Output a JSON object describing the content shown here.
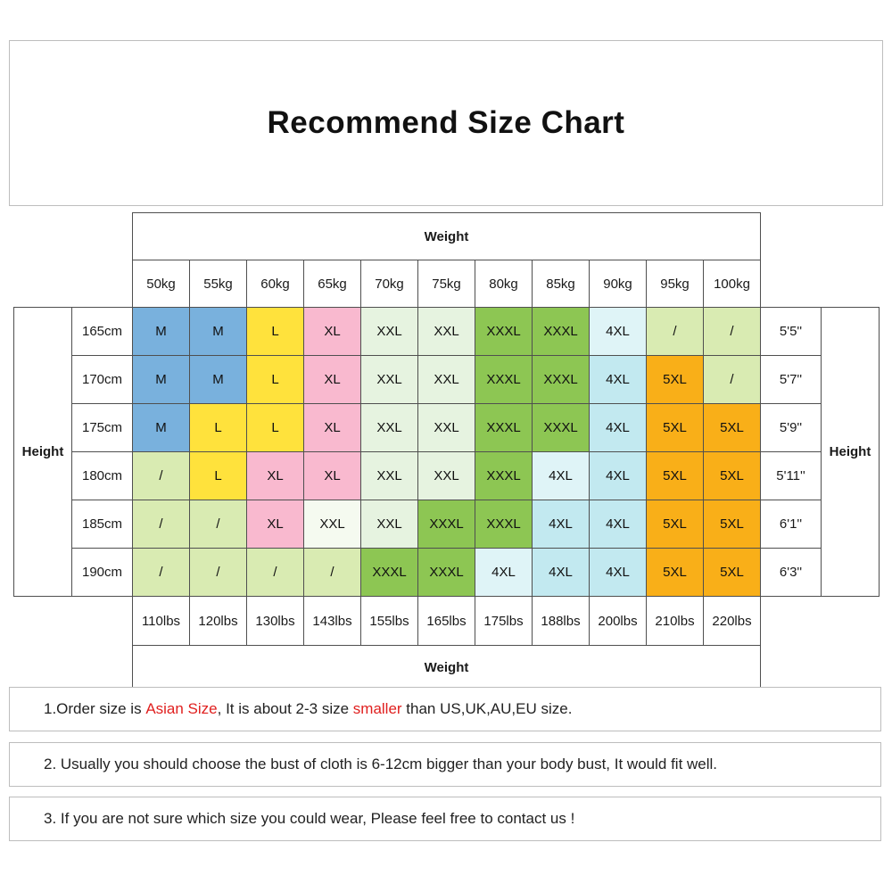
{
  "title": "Recommend Size Chart",
  "labels": {
    "weight_top": "Weight",
    "weight_bottom": "Weight",
    "height_left": "Height",
    "height_right": "Height"
  },
  "colors": {
    "blue": "#79B1DD",
    "yellow": "#FFE23C",
    "pink": "#F9B9CF",
    "mint": "#E6F3E0",
    "mint_white": "#F5FAF0",
    "green": "#8DC653",
    "cyan": "#C2E9F0",
    "cyan_light": "#DFF4F7",
    "pale_green": "#D9EBB2",
    "orange": "#F9AF18"
  },
  "chart_data": {
    "type": "table",
    "title": "Recommend Size Chart",
    "weight_kg": [
      "50kg",
      "55kg",
      "60kg",
      "65kg",
      "70kg",
      "75kg",
      "80kg",
      "85kg",
      "90kg",
      "95kg",
      "100kg"
    ],
    "weight_lbs": [
      "110lbs",
      "120lbs",
      "130lbs",
      "143lbs",
      "155lbs",
      "165lbs",
      "175lbs",
      "188lbs",
      "200lbs",
      "210lbs",
      "220lbs"
    ],
    "rows": [
      {
        "height_cm": "165cm",
        "height_ft": "5'5''",
        "cells": [
          {
            "size": "M",
            "color": "blue"
          },
          {
            "size": "M",
            "color": "blue"
          },
          {
            "size": "L",
            "color": "yellow"
          },
          {
            "size": "XL",
            "color": "pink"
          },
          {
            "size": "XXL",
            "color": "mint"
          },
          {
            "size": "XXL",
            "color": "mint"
          },
          {
            "size": "XXXL",
            "color": "green"
          },
          {
            "size": "XXXL",
            "color": "green"
          },
          {
            "size": "4XL",
            "color": "cyan_light"
          },
          {
            "size": "/",
            "color": "pale_green"
          },
          {
            "size": "/",
            "color": "pale_green"
          }
        ]
      },
      {
        "height_cm": "170cm",
        "height_ft": "5'7''",
        "cells": [
          {
            "size": "M",
            "color": "blue"
          },
          {
            "size": "M",
            "color": "blue"
          },
          {
            "size": "L",
            "color": "yellow"
          },
          {
            "size": "XL",
            "color": "pink"
          },
          {
            "size": "XXL",
            "color": "mint"
          },
          {
            "size": "XXL",
            "color": "mint"
          },
          {
            "size": "XXXL",
            "color": "green"
          },
          {
            "size": "XXXL",
            "color": "green"
          },
          {
            "size": "4XL",
            "color": "cyan"
          },
          {
            "size": "5XL",
            "color": "orange"
          },
          {
            "size": "/",
            "color": "pale_green"
          }
        ]
      },
      {
        "height_cm": "175cm",
        "height_ft": "5'9''",
        "cells": [
          {
            "size": "M",
            "color": "blue"
          },
          {
            "size": "L",
            "color": "yellow"
          },
          {
            "size": "L",
            "color": "yellow"
          },
          {
            "size": "XL",
            "color": "pink"
          },
          {
            "size": "XXL",
            "color": "mint"
          },
          {
            "size": "XXL",
            "color": "mint"
          },
          {
            "size": "XXXL",
            "color": "green"
          },
          {
            "size": "XXXL",
            "color": "green"
          },
          {
            "size": "4XL",
            "color": "cyan"
          },
          {
            "size": "5XL",
            "color": "orange"
          },
          {
            "size": "5XL",
            "color": "orange"
          }
        ]
      },
      {
        "height_cm": "180cm",
        "height_ft": "5'11''",
        "cells": [
          {
            "size": "/",
            "color": "pale_green"
          },
          {
            "size": "L",
            "color": "yellow"
          },
          {
            "size": "XL",
            "color": "pink"
          },
          {
            "size": "XL",
            "color": "pink"
          },
          {
            "size": "XXL",
            "color": "mint"
          },
          {
            "size": "XXL",
            "color": "mint"
          },
          {
            "size": "XXXL",
            "color": "green"
          },
          {
            "size": "4XL",
            "color": "cyan_light"
          },
          {
            "size": "4XL",
            "color": "cyan"
          },
          {
            "size": "5XL",
            "color": "orange"
          },
          {
            "size": "5XL",
            "color": "orange"
          }
        ]
      },
      {
        "height_cm": "185cm",
        "height_ft": "6'1''",
        "cells": [
          {
            "size": "/",
            "color": "pale_green"
          },
          {
            "size": "/",
            "color": "pale_green"
          },
          {
            "size": "XL",
            "color": "pink"
          },
          {
            "size": "XXL",
            "color": "mint_white"
          },
          {
            "size": "XXL",
            "color": "mint"
          },
          {
            "size": "XXXL",
            "color": "green"
          },
          {
            "size": "XXXL",
            "color": "green"
          },
          {
            "size": "4XL",
            "color": "cyan"
          },
          {
            "size": "4XL",
            "color": "cyan"
          },
          {
            "size": "5XL",
            "color": "orange"
          },
          {
            "size": "5XL",
            "color": "orange"
          }
        ]
      },
      {
        "height_cm": "190cm",
        "height_ft": "6'3''",
        "cells": [
          {
            "size": "/",
            "color": "pale_green"
          },
          {
            "size": "/",
            "color": "pale_green"
          },
          {
            "size": "/",
            "color": "pale_green"
          },
          {
            "size": "/",
            "color": "pale_green"
          },
          {
            "size": "XXXL",
            "color": "green"
          },
          {
            "size": "XXXL",
            "color": "green"
          },
          {
            "size": "4XL",
            "color": "cyan_light"
          },
          {
            "size": "4XL",
            "color": "cyan"
          },
          {
            "size": "4XL",
            "color": "cyan"
          },
          {
            "size": "5XL",
            "color": "orange"
          },
          {
            "size": "5XL",
            "color": "orange"
          }
        ]
      }
    ]
  },
  "notes": [
    {
      "segments": [
        {
          "text": "1.Order size is ",
          "red": false
        },
        {
          "text": "Asian Size",
          "red": true
        },
        {
          "text": ", It is about 2-3 size ",
          "red": false
        },
        {
          "text": "smaller",
          "red": true
        },
        {
          "text": " than US,UK,AU,EU size.",
          "red": false
        }
      ]
    },
    {
      "segments": [
        {
          "text": "2. Usually you should choose the bust of cloth is 6-12cm bigger than your body bust, It would fit well.",
          "red": false
        }
      ]
    },
    {
      "segments": [
        {
          "text": "3. If you are not sure which size you could wear, Please feel free to contact us !",
          "red": false
        }
      ]
    }
  ]
}
